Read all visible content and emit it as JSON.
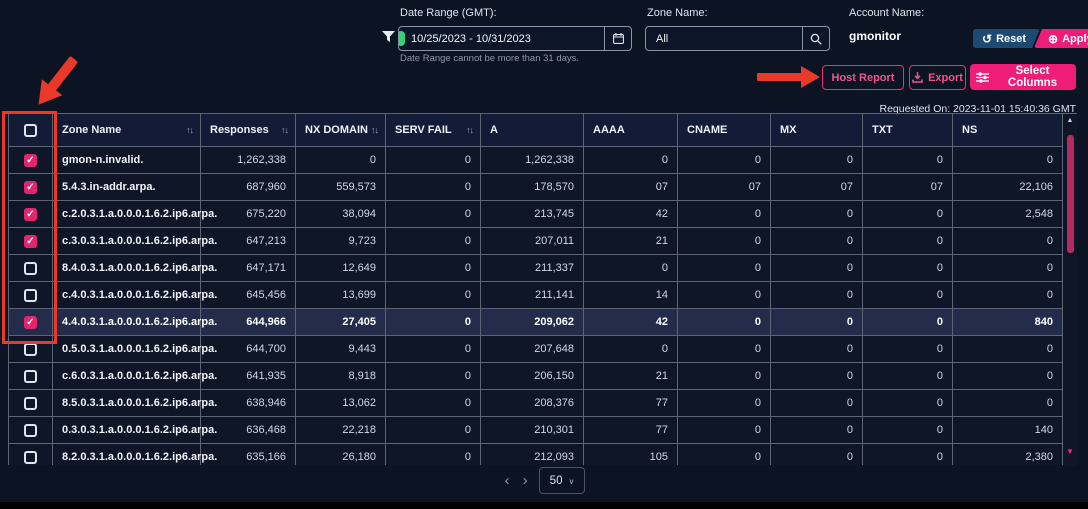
{
  "colors": {
    "accent_pink": "#ee1d77",
    "reset_blue": "#1c4a72",
    "annotation_red": "#ea3829",
    "checkbox_checked_pink": "#e3256f",
    "status_green": "#2fd573",
    "page_background": "#0c1322",
    "row_background": "#0e1628",
    "highlight_row_background": "#232d4b"
  },
  "filter_bar": {
    "date_range": {
      "label": "Date Range (GMT):",
      "value": "10/25/2023 - 10/31/2023",
      "help_text": "Date Range cannot be more than 31 days."
    },
    "zone_name": {
      "label": "Zone Name:",
      "value": "All"
    },
    "account_name": {
      "label": "Account Name:",
      "value": "gmonitor"
    },
    "reset_label": "Reset",
    "apply_label": "Apply"
  },
  "toolbar": {
    "host_report_label": "Host Report",
    "export_label": "Export",
    "select_columns_label": "Select Columns"
  },
  "requested_on": "Requested On: 2023-11-01 15:40:36 GMT",
  "table": {
    "columns": [
      {
        "label": "Zone Name",
        "sortable": true
      },
      {
        "label": "Responses",
        "sortable": true
      },
      {
        "label": "NX DOMAIN",
        "sortable": true
      },
      {
        "label": "SERV FAIL",
        "sortable": true
      },
      {
        "label": "A",
        "sortable": false
      },
      {
        "label": "AAAA",
        "sortable": false
      },
      {
        "label": "CNAME",
        "sortable": false
      },
      {
        "label": "MX",
        "sortable": false
      },
      {
        "label": "TXT",
        "sortable": false
      },
      {
        "label": "NS",
        "sortable": false
      }
    ],
    "rows": [
      {
        "checked": true,
        "highlighted": false,
        "cells": [
          "gmon-n.invalid.",
          "1,262,338",
          "0",
          "0",
          "1,262,338",
          "0",
          "0",
          "0",
          "0",
          "0"
        ]
      },
      {
        "checked": true,
        "highlighted": false,
        "cells": [
          "5.4.3.in-addr.arpa.",
          "687,960",
          "559,573",
          "0",
          "178,570",
          "07",
          "07",
          "07",
          "07",
          "22,106"
        ]
      },
      {
        "checked": true,
        "highlighted": false,
        "cells": [
          "c.2.0.3.1.a.0.0.0.1.6.2.ip6.arpa.",
          "675,220",
          "38,094",
          "0",
          "213,745",
          "42",
          "0",
          "0",
          "0",
          "2,548"
        ]
      },
      {
        "checked": true,
        "highlighted": false,
        "cells": [
          "c.3.0.3.1.a.0.0.0.1.6.2.ip6.arpa.",
          "647,213",
          "9,723",
          "0",
          "207,011",
          "21",
          "0",
          "0",
          "0",
          "0"
        ]
      },
      {
        "checked": false,
        "highlighted": false,
        "cells": [
          "8.4.0.3.1.a.0.0.0.1.6.2.ip6.arpa.",
          "647,171",
          "12,649",
          "0",
          "211,337",
          "0",
          "0",
          "0",
          "0",
          "0"
        ]
      },
      {
        "checked": false,
        "highlighted": false,
        "cells": [
          "c.4.0.3.1.a.0.0.0.1.6.2.ip6.arpa.",
          "645,456",
          "13,699",
          "0",
          "211,141",
          "14",
          "0",
          "0",
          "0",
          "0"
        ]
      },
      {
        "checked": true,
        "highlighted": true,
        "cells": [
          "4.4.0.3.1.a.0.0.0.1.6.2.ip6.arpa.",
          "644,966",
          "27,405",
          "0",
          "209,062",
          "42",
          "0",
          "0",
          "0",
          "840"
        ]
      },
      {
        "checked": false,
        "highlighted": false,
        "cells": [
          "0.5.0.3.1.a.0.0.0.1.6.2.ip6.arpa.",
          "644,700",
          "9,443",
          "0",
          "207,648",
          "0",
          "0",
          "0",
          "0",
          "0"
        ]
      },
      {
        "checked": false,
        "highlighted": false,
        "cells": [
          "c.6.0.3.1.a.0.0.0.1.6.2.ip6.arpa.",
          "641,935",
          "8,918",
          "0",
          "206,150",
          "21",
          "0",
          "0",
          "0",
          "0"
        ]
      },
      {
        "checked": false,
        "highlighted": false,
        "cells": [
          "8.5.0.3.1.a.0.0.0.1.6.2.ip6.arpa.",
          "638,946",
          "13,062",
          "0",
          "208,376",
          "77",
          "0",
          "0",
          "0",
          "0"
        ]
      },
      {
        "checked": false,
        "highlighted": false,
        "cells": [
          "0.3.0.3.1.a.0.0.0.1.6.2.ip6.arpa.",
          "636,468",
          "22,218",
          "0",
          "210,301",
          "77",
          "0",
          "0",
          "0",
          "140"
        ]
      },
      {
        "checked": false,
        "highlighted": false,
        "cells": [
          "8.2.0.3.1.a.0.0.0.1.6.2.ip6.arpa.",
          "635,166",
          "26,180",
          "0",
          "212,093",
          "105",
          "0",
          "0",
          "0",
          "2,380"
        ]
      }
    ]
  },
  "pagination": {
    "page_size": "50"
  }
}
